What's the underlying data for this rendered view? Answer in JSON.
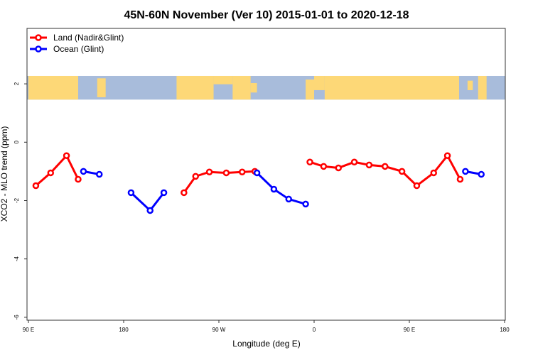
{
  "chart_data": {
    "type": "line",
    "title": "45N-60N November (Ver 10)   2015-01-01 to 2020-12-18",
    "xlabel": "Longitude (deg E)",
    "ylabel": "XCO2 - MLO trend (ppm)",
    "xlim": [
      90,
      540
    ],
    "ylim": [
      -6.1,
      3.9
    ],
    "x_ticks": [
      {
        "value": 90,
        "label": "90 E"
      },
      {
        "value": 180,
        "label": "180"
      },
      {
        "value": 270,
        "label": "90 W"
      },
      {
        "value": 360,
        "label": "0"
      },
      {
        "value": 450,
        "label": "90 E"
      },
      {
        "value": 540,
        "label": "180"
      }
    ],
    "y_ticks": [
      {
        "value": 2,
        "label": "2"
      },
      {
        "value": 0,
        "label": "0"
      },
      {
        "value": -2,
        "label": "-2"
      },
      {
        "value": -4,
        "label": "-4"
      },
      {
        "value": -6,
        "label": "-6"
      }
    ],
    "legend_position": "top-left",
    "series": [
      {
        "name": "Land (Nadir&Glint)",
        "color": "#ff0000",
        "segments": [
          [
            [
              97,
              -1.49
            ],
            [
              111,
              -1.05
            ],
            [
              126,
              -0.46
            ],
            [
              137,
              -1.27
            ]
          ],
          [
            [
              237,
              -1.73
            ],
            [
              248,
              -1.17
            ],
            [
              261,
              -1.02
            ],
            [
              277,
              -1.05
            ],
            [
              292,
              -1.02
            ],
            [
              304,
              -1.0
            ]
          ],
          [
            [
              356,
              -0.68
            ],
            [
              369,
              -0.83
            ],
            [
              383,
              -0.88
            ],
            [
              398,
              -0.68
            ],
            [
              412,
              -0.78
            ],
            [
              427,
              -0.83
            ],
            [
              443,
              -1.0
            ],
            [
              457,
              -1.49
            ],
            [
              473,
              -1.05
            ],
            [
              486,
              -0.46
            ],
            [
              498,
              -1.27
            ]
          ]
        ]
      },
      {
        "name": "Ocean (Glint)",
        "color": "#0000ff",
        "segments": [
          [
            [
              142,
              -1.0
            ],
            [
              157,
              -1.1
            ]
          ],
          [
            [
              187,
              -1.73
            ],
            [
              205,
              -2.34
            ],
            [
              218,
              -1.73
            ]
          ],
          [
            [
              306,
              -1.05
            ],
            [
              322,
              -1.61
            ],
            [
              336,
              -1.95
            ],
            [
              352,
              -2.12
            ]
          ],
          [
            [
              503,
              -1.0
            ],
            [
              518,
              -1.1
            ]
          ]
        ]
      }
    ],
    "map_band": {
      "land_color": "#fdd877",
      "ocean_color": "#a8bcdb",
      "ylim": [
        1.46,
        2.27
      ]
    }
  }
}
